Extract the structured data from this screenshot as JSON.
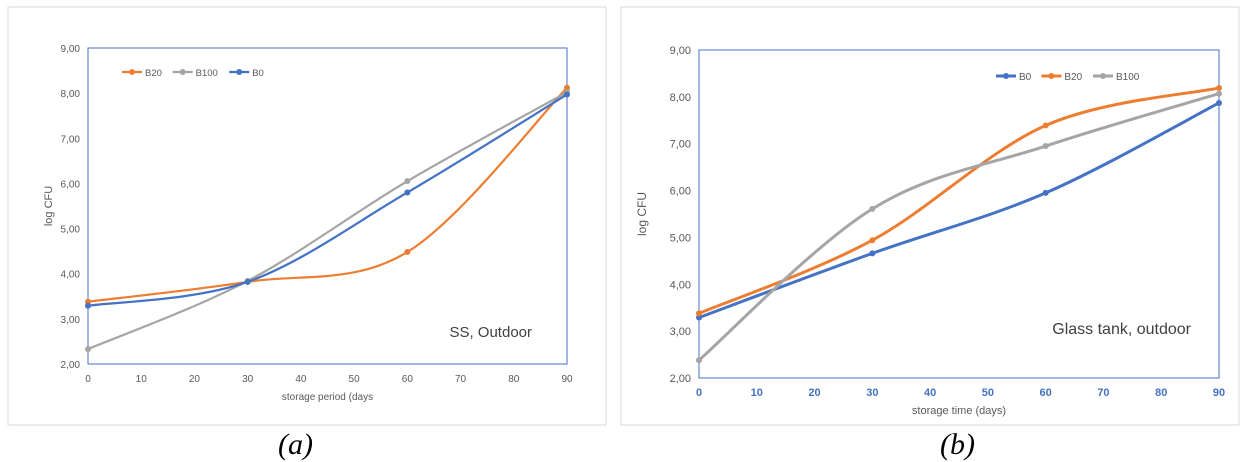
{
  "chart_data": [
    {
      "type": "line",
      "caption": "(a)",
      "annotation": "SS, Outdoor",
      "xlabel": "storage period (days",
      "ylabel": "log CFU",
      "xlim": [
        0,
        90
      ],
      "ylim": [
        2,
        9
      ],
      "xticks": [
        "0",
        "10",
        "20",
        "30",
        "40",
        "50",
        "60",
        "70",
        "80",
        "90"
      ],
      "yticks": [
        "2,00",
        "3,00",
        "4,00",
        "5,00",
        "6,00",
        "7,00",
        "8,00",
        "9,00"
      ],
      "x": [
        0,
        30,
        60,
        90
      ],
      "legend_position": "top-left",
      "series": [
        {
          "name": "B20",
          "color": "#ED7D31",
          "values": [
            3.38,
            3.82,
            4.48,
            8.12
          ]
        },
        {
          "name": "B100",
          "color": "#A5A5A5",
          "values": [
            2.33,
            3.84,
            6.05,
            8.02
          ]
        },
        {
          "name": "B0",
          "color": "#4472C4",
          "values": [
            3.29,
            3.82,
            5.8,
            7.97
          ]
        }
      ]
    },
    {
      "type": "line",
      "caption": "(b)",
      "annotation": "Glass tank, outdoor",
      "xlabel": "storage time (days)",
      "ylabel": "log CFU",
      "xlim": [
        0,
        90
      ],
      "ylim": [
        2,
        9
      ],
      "xticks": [
        "0",
        "10",
        "20",
        "30",
        "40",
        "50",
        "60",
        "70",
        "80",
        "90"
      ],
      "yticks": [
        "2,00",
        "3,00",
        "4,00",
        "5,00",
        "6,00",
        "7,00",
        "8,00",
        "9,00"
      ],
      "x": [
        0,
        30,
        60,
        90
      ],
      "legend_position": "top-right",
      "series": [
        {
          "name": "B0",
          "color": "#4472C4",
          "values": [
            3.29,
            4.66,
            5.95,
            7.87
          ]
        },
        {
          "name": "B20",
          "color": "#ED7D31",
          "values": [
            3.38,
            4.94,
            7.39,
            8.19
          ]
        },
        {
          "name": "B100",
          "color": "#A5A5A5",
          "values": [
            2.38,
            5.61,
            6.95,
            8.07
          ]
        }
      ]
    }
  ]
}
